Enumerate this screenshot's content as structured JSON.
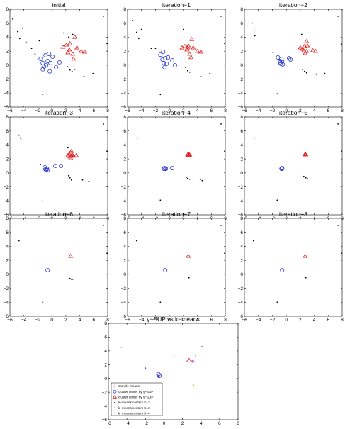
{
  "chart_data": [
    {
      "type": "scatter",
      "title": "initial",
      "xlim": [
        -6,
        8
      ],
      "ylim": [
        -6,
        8
      ],
      "xticks": [
        -6,
        -4,
        -2,
        0,
        2,
        4,
        6,
        8
      ],
      "yticks": [
        -6,
        -4,
        -2,
        0,
        2,
        4,
        6,
        8
      ],
      "noise": [
        [
          -5.6,
          6.6
        ],
        [
          -4.9,
          4.8
        ],
        [
          -4.6,
          3.8
        ],
        [
          -4.2,
          5.3
        ],
        [
          -3.7,
          3.3
        ],
        [
          -2.9,
          2.4
        ],
        [
          -2.4,
          1.6
        ],
        [
          -1.8,
          3.5
        ],
        [
          -1.3,
          -4.2
        ],
        [
          2.2,
          -0.2
        ],
        [
          2.6,
          -0.7
        ],
        [
          2.9,
          -0.9
        ],
        [
          3.3,
          -0.6
        ],
        [
          4.6,
          -1.6
        ],
        [
          5.9,
          -1.2
        ],
        [
          7.4,
          7.0
        ],
        [
          7.9,
          3.1
        ],
        [
          1.7,
          4.6
        ],
        [
          2.4,
          4.0
        ],
        [
          3.0,
          4.4
        ]
      ],
      "clusterA": [
        [
          -1.6,
          0.9
        ],
        [
          -1.3,
          0.3
        ],
        [
          -1.1,
          -0.2
        ],
        [
          -0.9,
          1.4
        ],
        [
          -0.6,
          0.6
        ],
        [
          -0.4,
          1.6
        ],
        [
          -0.2,
          0.3
        ],
        [
          0.1,
          1.2
        ],
        [
          -0.3,
          -0.9
        ],
        [
          0.6,
          -0.3
        ],
        [
          1.1,
          0.4
        ],
        [
          -1.3,
          -0.6
        ],
        [
          -0.8,
          0.0
        ]
      ],
      "clusterB": [
        [
          1.6,
          2.6
        ],
        [
          2.1,
          2.9
        ],
        [
          2.5,
          2.2
        ],
        [
          2.6,
          3.1
        ],
        [
          3.0,
          1.6
        ],
        [
          3.3,
          4.0
        ],
        [
          3.6,
          2.5
        ],
        [
          4.2,
          2.0
        ],
        [
          4.7,
          1.9
        ],
        [
          3.1,
          0.9
        ],
        [
          2.3,
          1.8
        ]
      ]
    },
    {
      "type": "scatter",
      "title": "iteration−1",
      "xlim": [
        -6,
        8
      ],
      "ylim": [
        -6,
        8
      ],
      "xticks": [
        -6,
        -4,
        -2,
        0,
        2,
        4,
        6,
        8
      ],
      "yticks": [
        -6,
        -4,
        -2,
        0,
        2,
        4,
        6,
        8
      ],
      "noise": [
        [
          -5.3,
          6.4
        ],
        [
          -4.7,
          4.7
        ],
        [
          -4.4,
          3.8
        ],
        [
          -4.0,
          5.1
        ],
        [
          -2.6,
          2.4
        ],
        [
          -2.0,
          2.4
        ],
        [
          -1.3,
          -4.2
        ],
        [
          2.0,
          5.1
        ],
        [
          2.3,
          -0.3
        ],
        [
          2.6,
          -0.8
        ],
        [
          2.9,
          -1.0
        ],
        [
          4.5,
          -1.6
        ],
        [
          5.8,
          -1.2
        ],
        [
          7.4,
          7.0
        ],
        [
          7.9,
          3.1
        ]
      ],
      "clusterA": [
        [
          -1.3,
          1.5
        ],
        [
          -1.0,
          0.8
        ],
        [
          -0.8,
          0.3
        ],
        [
          -0.6,
          1.0
        ],
        [
          -0.4,
          0.2
        ],
        [
          -0.2,
          1.1
        ],
        [
          -0.7,
          -0.3
        ],
        [
          0.4,
          0.7
        ],
        [
          0.8,
          0.0
        ],
        [
          -0.9,
          1.9
        ]
      ],
      "clusterB": [
        [
          1.8,
          2.5
        ],
        [
          2.2,
          2.7
        ],
        [
          2.5,
          2.2
        ],
        [
          2.7,
          2.8
        ],
        [
          2.9,
          1.6
        ],
        [
          3.2,
          3.7
        ],
        [
          3.4,
          2.5
        ],
        [
          4.0,
          2.0
        ],
        [
          4.5,
          1.9
        ],
        [
          3.1,
          1.1
        ],
        [
          2.6,
          2.5
        ]
      ]
    },
    {
      "type": "scatter",
      "title": "iteration−2",
      "xlim": [
        -6,
        8
      ],
      "ylim": [
        -6,
        8
      ],
      "xticks": [
        -6,
        -4,
        -2,
        0,
        2,
        4,
        6,
        8
      ],
      "yticks": [
        -6,
        -4,
        -2,
        0,
        2,
        4,
        6,
        8
      ],
      "noise": [
        [
          -4.9,
          6.0
        ],
        [
          -4.6,
          5.0
        ],
        [
          -4.6,
          4.6
        ],
        [
          -4.5,
          4.2
        ],
        [
          -1.9,
          1.8
        ],
        [
          -1.3,
          -4.1
        ],
        [
          2.2,
          4.4
        ],
        [
          2.3,
          -0.6
        ],
        [
          2.6,
          -0.9
        ],
        [
          2.9,
          -1.1
        ],
        [
          4.3,
          -1.3
        ],
        [
          5.5,
          -1.2
        ],
        [
          7.4,
          7.0
        ],
        [
          7.9,
          3.0
        ]
      ],
      "clusterA": [
        [
          -1.2,
          1.1
        ],
        [
          -0.9,
          0.6
        ],
        [
          -0.8,
          0.2
        ],
        [
          -0.6,
          0.5
        ],
        [
          -0.5,
          0.1
        ],
        [
          -0.7,
          0.9
        ],
        [
          0.4,
          1.0
        ],
        [
          0.6,
          0.8
        ],
        [
          -0.9,
          0.4
        ]
      ],
      "clusterB": [
        [
          2.0,
          2.5
        ],
        [
          2.3,
          2.3
        ],
        [
          2.5,
          2.1
        ],
        [
          2.6,
          2.7
        ],
        [
          2.7,
          1.7
        ],
        [
          2.9,
          3.4
        ],
        [
          3.0,
          2.8
        ],
        [
          3.8,
          2.1
        ],
        [
          4.2,
          2.0
        ],
        [
          2.9,
          2.0
        ]
      ]
    },
    {
      "type": "scatter",
      "title": "iteration−3",
      "xlim": [
        -6,
        8
      ],
      "ylim": [
        -6,
        8
      ],
      "xticks": [
        -6,
        -4,
        -2,
        0,
        2,
        4,
        6,
        8
      ],
      "yticks": [
        -6,
        -4,
        -2,
        0,
        2,
        4,
        6,
        8
      ],
      "noise": [
        [
          -4.7,
          5.4
        ],
        [
          -4.5,
          5.0
        ],
        [
          -4.4,
          4.7
        ],
        [
          -1.6,
          1.2
        ],
        [
          -1.3,
          -4.0
        ],
        [
          2.3,
          3.6
        ],
        [
          2.4,
          -0.4
        ],
        [
          2.6,
          -0.7
        ],
        [
          2.8,
          -1.0
        ],
        [
          4.4,
          -1.0
        ],
        [
          5.3,
          -1.2
        ],
        [
          7.4,
          7.0
        ],
        [
          7.9,
          3.1
        ],
        [
          2.6,
          3.0
        ],
        [
          3.0,
          2.4
        ]
      ],
      "clusterA": [
        [
          -1.0,
          0.8
        ],
        [
          -0.9,
          0.5
        ],
        [
          -0.8,
          0.4
        ],
        [
          -0.7,
          0.6
        ],
        [
          -0.6,
          0.4
        ],
        [
          0.5,
          1.0
        ],
        [
          1.3,
          1.0
        ]
      ],
      "clusterB": [
        [
          2.3,
          2.5
        ],
        [
          2.5,
          2.7
        ],
        [
          2.6,
          2.3
        ],
        [
          2.7,
          2.9
        ],
        [
          2.7,
          2.1
        ],
        [
          2.9,
          2.6
        ],
        [
          3.1,
          2.4
        ],
        [
          3.5,
          2.5
        ],
        [
          2.8,
          3.1
        ]
      ]
    },
    {
      "type": "scatter",
      "title": "iteration−4",
      "xlim": [
        -6,
        8
      ],
      "ylim": [
        -6,
        8
      ],
      "xticks": [
        -6,
        -4,
        -2,
        0,
        2,
        4,
        6,
        8
      ],
      "yticks": [
        -6,
        -4,
        -2,
        0,
        2,
        4,
        6,
        8
      ],
      "noise": [
        [
          -4.6,
          5.0
        ],
        [
          -1.3,
          -3.9
        ],
        [
          2.5,
          -0.6
        ],
        [
          2.6,
          -0.8
        ],
        [
          2.9,
          -0.9
        ],
        [
          4.4,
          -0.9
        ],
        [
          4.7,
          -1.1
        ],
        [
          7.4,
          7.0
        ],
        [
          7.9,
          3.1
        ],
        [
          2.7,
          2.8
        ],
        [
          2.8,
          2.5
        ]
      ],
      "clusterA": [
        [
          -0.8,
          0.6
        ],
        [
          -0.7,
          0.7
        ],
        [
          -0.6,
          0.6
        ],
        [
          -0.5,
          0.6
        ],
        [
          0.4,
          0.7
        ]
      ],
      "clusterB": [
        [
          2.6,
          2.6
        ],
        [
          2.7,
          2.7
        ],
        [
          2.7,
          2.5
        ],
        [
          2.8,
          2.6
        ],
        [
          2.9,
          2.6
        ]
      ]
    },
    {
      "type": "scatter",
      "title": "iteration−5",
      "xlim": [
        -6,
        8
      ],
      "ylim": [
        -6,
        8
      ],
      "xticks": [
        -6,
        -4,
        -2,
        0,
        2,
        4,
        6,
        8
      ],
      "yticks": [
        -6,
        -4,
        -2,
        0,
        2,
        4,
        6,
        8
      ],
      "noise": [
        [
          -4.6,
          5.0
        ],
        [
          -1.3,
          -3.9
        ],
        [
          2.5,
          -0.5
        ],
        [
          2.8,
          -0.7
        ],
        [
          3.0,
          -0.8
        ],
        [
          7.4,
          7.0
        ],
        [
          7.9,
          3.1
        ]
      ],
      "clusterA": [
        [
          -0.7,
          0.6
        ],
        [
          -0.6,
          0.6
        ],
        [
          -0.6,
          0.7
        ]
      ],
      "clusterB": [
        [
          2.7,
          2.6
        ],
        [
          2.7,
          2.7
        ],
        [
          2.8,
          2.6
        ]
      ]
    },
    {
      "type": "scatter",
      "title": "iteration−6",
      "xlim": [
        -6,
        8
      ],
      "ylim": [
        -6,
        8
      ],
      "xticks": [
        -6,
        -4,
        -2,
        0,
        2,
        4,
        6,
        8
      ],
      "yticks": [
        -6,
        -4,
        -2,
        0,
        2,
        4,
        6,
        8
      ],
      "noise": [
        [
          -4.7,
          4.8
        ],
        [
          -1.3,
          -4.0
        ],
        [
          2.6,
          -0.6
        ],
        [
          2.8,
          -0.7
        ],
        [
          3.0,
          -0.7
        ],
        [
          7.4,
          7.0
        ],
        [
          7.9,
          3.0
        ]
      ],
      "clusterA": [
        [
          -0.6,
          0.6
        ]
      ],
      "clusterB": [
        [
          2.7,
          2.6
        ]
      ]
    },
    {
      "type": "scatter",
      "title": "iteration−7",
      "xlim": [
        -6,
        8
      ],
      "ylim": [
        -6,
        8
      ],
      "xticks": [
        -6,
        -4,
        -2,
        0,
        2,
        4,
        6,
        8
      ],
      "yticks": [
        -6,
        -4,
        -2,
        0,
        2,
        4,
        6,
        8
      ],
      "noise": [
        [
          -4.7,
          4.8
        ],
        [
          -1.3,
          -4.0
        ],
        [
          2.8,
          -0.5
        ],
        [
          7.4,
          7.0
        ],
        [
          7.9,
          3.0
        ]
      ],
      "clusterA": [
        [
          -0.6,
          0.6
        ]
      ],
      "clusterB": [
        [
          2.7,
          2.6
        ]
      ]
    },
    {
      "type": "scatter",
      "title": "iteration−8",
      "xlim": [
        -6,
        8
      ],
      "ylim": [
        -6,
        8
      ],
      "xticks": [
        -6,
        -4,
        -2,
        0,
        2,
        4,
        6,
        8
      ],
      "yticks": [
        -6,
        -4,
        -2,
        0,
        2,
        4,
        6,
        8
      ],
      "noise": [
        [
          -4.7,
          4.8
        ],
        [
          -1.3,
          -4.0
        ],
        [
          2.8,
          -0.5
        ],
        [
          7.4,
          7.0
        ],
        [
          7.9,
          3.0
        ]
      ],
      "clusterA": [
        [
          -0.6,
          0.6
        ]
      ],
      "clusterB": [
        [
          2.7,
          2.6
        ]
      ]
    },
    {
      "type": "scatter",
      "title": "γ−SUP vs k−means",
      "xlim": [
        -6,
        8
      ],
      "ylim": [
        -6,
        8
      ],
      "xticks": [
        -6,
        -4,
        -2,
        0,
        2,
        4,
        6,
        8
      ],
      "yticks": [
        -6,
        -4,
        -2,
        0,
        2,
        4,
        6,
        8
      ],
      "sample_means": [
        [
          3.1,
          2.5
        ]
      ],
      "gamma_sup_centers_a": [
        [
          -0.6,
          0.6
        ],
        [
          -0.5,
          0.4
        ]
      ],
      "gamma_sup_centers_b": [
        [
          2.7,
          2.6
        ]
      ],
      "kmeans_k2": [
        [
          1.1,
          3.4
        ]
      ],
      "kmeans_k3": [
        [
          -2.0,
          1.5
        ],
        [
          -0.6,
          0.4
        ],
        [
          4.1,
          4.6
        ]
      ],
      "kmeans_k4": [
        [
          -4.6,
          4.5
        ],
        [
          3.4,
          3.3
        ],
        [
          3.2,
          -1.0
        ]
      ],
      "legend": [
        "sample means",
        "cluster center by γ−SUP",
        "cluster center by γ−SUP",
        "k−means centers K=2",
        "k−means centers K=3",
        "k−means centers K=4"
      ],
      "colors": {
        "sample_means": "#cc44cc",
        "k2": "#000000",
        "k3": "#2b3bd6",
        "k4": "#9acd32"
      }
    }
  ]
}
